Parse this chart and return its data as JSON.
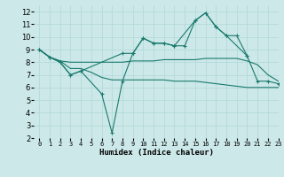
{
  "bg_color": "#cce8e8",
  "grid_color": "#b0d8d8",
  "line_color": "#1a7a6e",
  "xlabel": "Humidex (Indice chaleur)",
  "xlim": [
    -0.5,
    23
  ],
  "ylim": [
    2,
    12.5
  ],
  "yticks": [
    2,
    3,
    4,
    5,
    6,
    7,
    8,
    9,
    10,
    11,
    12
  ],
  "xticks": [
    0,
    1,
    2,
    3,
    4,
    5,
    6,
    7,
    8,
    9,
    10,
    11,
    12,
    13,
    14,
    15,
    16,
    17,
    18,
    19,
    20,
    21,
    22,
    23
  ],
  "line1": {
    "x": [
      0,
      1,
      2,
      3,
      4,
      5,
      6,
      7,
      8,
      9,
      10,
      11,
      12,
      13,
      14,
      15,
      16,
      17,
      18,
      19,
      20,
      21,
      22,
      23
    ],
    "y": [
      9.0,
      8.4,
      8.1,
      8.0,
      8.0,
      8.0,
      8.0,
      8.0,
      8.0,
      8.1,
      8.1,
      8.1,
      8.2,
      8.2,
      8.2,
      8.2,
      8.3,
      8.3,
      8.3,
      8.3,
      8.1,
      7.8,
      7.0,
      6.5
    ],
    "markers": false
  },
  "line2": {
    "x": [
      0,
      1,
      2,
      3,
      4,
      5,
      6,
      7,
      8,
      9,
      10,
      11,
      12,
      13,
      14,
      15,
      16,
      17,
      18,
      19,
      20,
      21,
      22,
      23
    ],
    "y": [
      9.0,
      8.4,
      8.1,
      7.5,
      7.5,
      7.2,
      6.8,
      6.6,
      6.6,
      6.6,
      6.6,
      6.6,
      6.6,
      6.5,
      6.5,
      6.5,
      6.4,
      6.3,
      6.2,
      6.1,
      6.0,
      6.0,
      6.0,
      6.0
    ],
    "markers": false
  },
  "line3": {
    "x": [
      0,
      1,
      2,
      3,
      4,
      6,
      7,
      8,
      9,
      10,
      11,
      12,
      13,
      15,
      16,
      17,
      18,
      20,
      21,
      22,
      23
    ],
    "y": [
      9.0,
      8.4,
      8.0,
      7.0,
      7.3,
      5.5,
      2.4,
      6.5,
      8.7,
      9.9,
      9.5,
      9.5,
      9.3,
      11.3,
      11.9,
      10.8,
      10.1,
      8.5,
      6.5,
      6.5,
      6.3
    ],
    "markers": true
  },
  "line4": {
    "x": [
      0,
      1,
      2,
      3,
      4,
      8,
      9,
      10,
      11,
      12,
      13,
      14,
      15,
      16,
      17,
      18,
      19,
      20
    ],
    "y": [
      9.0,
      8.4,
      8.0,
      7.0,
      7.3,
      8.7,
      8.7,
      9.9,
      9.5,
      9.5,
      9.3,
      9.3,
      11.3,
      11.9,
      10.8,
      10.1,
      10.1,
      8.5
    ],
    "markers": true
  }
}
